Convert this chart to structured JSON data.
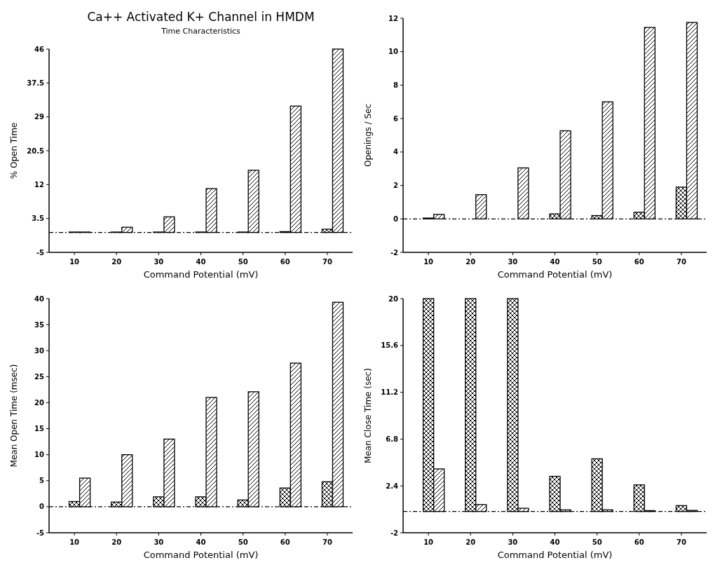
{
  "chart_data": [
    {
      "type": "bar",
      "title": "Ca++ Activated K+ Channel in HMDM",
      "subtitle": "Time Characteristics",
      "xlabel": "Command Potential (mV)",
      "ylabel": "% Open Time",
      "categories": [
        "10",
        "20",
        "30",
        "40",
        "50",
        "60",
        "70"
      ],
      "series": [
        {
          "color": "#000000",
          "values": [
            0.1,
            0.1,
            0.1,
            0.1,
            0.1,
            0.2,
            0.8
          ]
        },
        {
          "color": "#000000",
          "values": [
            0.1,
            1.3,
            3.9,
            11.0,
            15.6,
            31.7,
            46
          ]
        }
      ],
      "ylim": [
        -5,
        46
      ],
      "yticks": [
        -5,
        3.5,
        12,
        20.5,
        29,
        37.5,
        46
      ],
      "ref_lines": [
        {
          "axis": "y",
          "value": 0,
          "line_style": "dashed"
        }
      ]
    },
    {
      "type": "bar",
      "xlabel": "Command Potential (mV)",
      "ylabel": "Openings / Sec",
      "categories": [
        "10",
        "20",
        "30",
        "40",
        "50",
        "60",
        "70"
      ],
      "series": [
        {
          "color": "#000000",
          "values": [
            0.05,
            null,
            null,
            0.3,
            0.2,
            0.4,
            1.9
          ]
        },
        {
          "color": "#000000",
          "values": [
            0.27,
            1.45,
            3.05,
            5.27,
            7.0,
            11.45,
            11.75
          ]
        }
      ],
      "ylim": [
        -2,
        12
      ],
      "yticks": [
        -2,
        0,
        2,
        4,
        6,
        8,
        10,
        12
      ],
      "ref_lines": [
        {
          "axis": "y",
          "value": 0,
          "line_style": "dashed"
        }
      ]
    },
    {
      "type": "bar",
      "xlabel": "Command Potential (mV)",
      "ylabel": "Mean Open Time (msec)",
      "categories": [
        "10",
        "20",
        "30",
        "40",
        "50",
        "60",
        "70"
      ],
      "series": [
        {
          "color": "#000000",
          "values": [
            1,
            0.9,
            1.9,
            1.9,
            1.3,
            3.6,
            4.8
          ]
        },
        {
          "color": "#000000",
          "values": [
            5.5,
            10.0,
            13.0,
            21.0,
            22.1,
            27.6,
            39.3
          ]
        }
      ],
      "ylim": [
        -5,
        40
      ],
      "yticks": [
        -5,
        0,
        5,
        10,
        15,
        20,
        25,
        30,
        35,
        40
      ],
      "ref_lines": [
        {
          "axis": "y",
          "value": 0,
          "line_style": "dashed"
        }
      ]
    },
    {
      "type": "bar",
      "xlabel": "Command Potential (mV)",
      "ylabel": "Mean Close Time (sec)",
      "categories": [
        "10",
        "20",
        "30",
        "40",
        "50",
        "60",
        "70"
      ],
      "series": [
        {
          "color": "#000000",
          "values": [
            20,
            20,
            20,
            3.3,
            4.95,
            2.5,
            0.55
          ]
        },
        {
          "color": "#000000",
          "values": [
            4.0,
            0.65,
            0.3,
            0.15,
            0.15,
            0.08,
            0.1
          ]
        }
      ],
      "ylim": [
        -2,
        20
      ],
      "yticks": [
        -2,
        2.4,
        6.8,
        11.2,
        15.6,
        20
      ],
      "ref_lines": [
        {
          "axis": "y",
          "value": 0,
          "line_style": "dashed"
        }
      ]
    }
  ]
}
